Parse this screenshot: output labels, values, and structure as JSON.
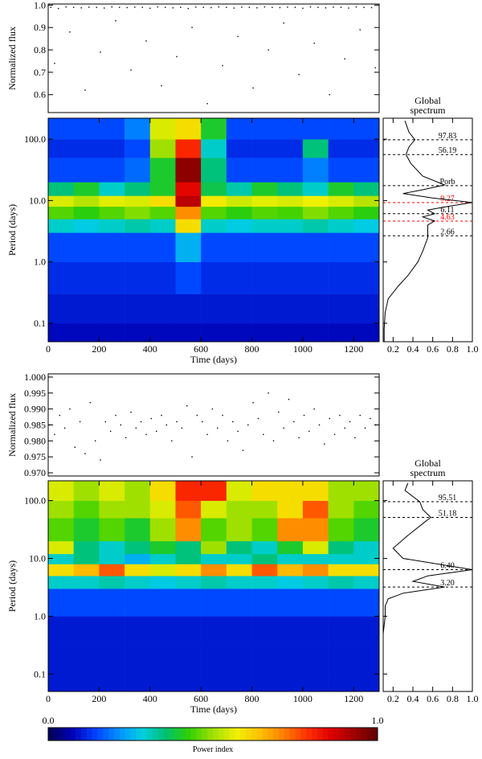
{
  "chart_data": [
    {
      "type": "scatter",
      "ylabel": "Normalized flux",
      "color": "#000000",
      "xlim": [
        0,
        1300
      ],
      "ylim": [
        0.52,
        1.005
      ],
      "yticks": [
        0.6,
        0.7,
        0.8,
        0.9,
        {
          "value": 1.0,
          "label": "1.0"
        }
      ],
      "x": [
        10,
        40,
        70,
        100,
        130,
        160,
        190,
        220,
        250,
        280,
        310,
        340,
        370,
        400,
        430,
        460,
        490,
        520,
        550,
        580,
        610,
        640,
        670,
        700,
        730,
        760,
        790,
        820,
        850,
        880,
        910,
        940,
        970,
        1000,
        1030,
        1060,
        1090,
        1120,
        1150,
        1180,
        1210,
        1240,
        1270,
        25,
        85,
        145,
        205,
        265,
        325,
        385,
        445,
        505,
        565,
        625,
        685,
        745,
        805,
        865,
        925,
        985,
        1045,
        1105,
        1165,
        1225,
        1285
      ],
      "values": [
        0.99,
        0.985,
        0.992,
        0.99,
        0.988,
        0.991,
        0.99,
        0.987,
        0.992,
        0.99,
        0.989,
        0.991,
        0.99,
        0.986,
        0.992,
        0.99,
        0.988,
        0.99,
        0.985,
        0.991,
        0.99,
        0.989,
        0.992,
        0.99,
        0.987,
        0.991,
        0.99,
        0.988,
        0.992,
        0.99,
        0.989,
        0.991,
        0.99,
        0.986,
        0.992,
        0.99,
        0.988,
        0.991,
        0.99,
        0.987,
        0.992,
        0.99,
        0.989,
        0.74,
        0.88,
        0.62,
        0.79,
        0.93,
        0.71,
        0.84,
        0.64,
        0.77,
        0.9,
        0.56,
        0.73,
        0.86,
        0.63,
        0.8,
        0.92,
        0.69,
        0.83,
        0.6,
        0.76,
        0.89,
        0.72
      ]
    },
    {
      "type": "heatmap",
      "xlabel": "Time (days)",
      "ylabel": "Period (days)",
      "log_y": true,
      "xlim": [
        0,
        1300
      ],
      "ylim": [
        0.05,
        220
      ],
      "xticks": [
        0,
        200,
        400,
        600,
        800,
        1000,
        1200
      ],
      "yticks": [
        0.1,
        {
          "value": 1,
          "label": "1.0"
        },
        {
          "value": 10,
          "label": "10.0"
        },
        {
          "value": 100,
          "label": "100.0"
        }
      ],
      "time_bins": [
        0,
        100,
        200,
        300,
        400,
        500,
        600,
        700,
        800,
        900,
        1000,
        1100,
        1200,
        1300
      ],
      "period_bins": [
        0.05,
        0.1,
        0.3,
        1,
        3,
        5,
        8,
        12,
        20,
        50,
        100,
        220
      ],
      "power": [
        [
          0.08,
          0.08,
          0.08,
          0.08,
          0.08,
          0.08,
          0.08,
          0.08,
          0.08,
          0.08,
          0.08,
          0.08,
          0.08
        ],
        [
          0.1,
          0.1,
          0.1,
          0.1,
          0.1,
          0.1,
          0.1,
          0.1,
          0.1,
          0.1,
          0.1,
          0.1,
          0.1
        ],
        [
          0.12,
          0.12,
          0.12,
          0.12,
          0.12,
          0.15,
          0.12,
          0.12,
          0.12,
          0.12,
          0.12,
          0.12,
          0.12
        ],
        [
          0.15,
          0.15,
          0.15,
          0.15,
          0.15,
          0.25,
          0.15,
          0.15,
          0.15,
          0.15,
          0.15,
          0.15,
          0.15
        ],
        [
          0.3,
          0.28,
          0.3,
          0.32,
          0.3,
          0.6,
          0.3,
          0.28,
          0.3,
          0.3,
          0.32,
          0.3,
          0.28
        ],
        [
          0.45,
          0.42,
          0.45,
          0.48,
          0.45,
          0.7,
          0.45,
          0.42,
          0.45,
          0.44,
          0.48,
          0.45,
          0.42
        ],
        [
          0.55,
          0.52,
          0.56,
          0.55,
          0.6,
          0.9,
          0.58,
          0.54,
          0.56,
          0.55,
          0.57,
          0.55,
          0.52
        ],
        [
          0.35,
          0.4,
          0.3,
          0.35,
          0.4,
          0.85,
          0.38,
          0.32,
          0.4,
          0.35,
          0.3,
          0.4,
          0.35
        ],
        [
          0.15,
          0.15,
          0.15,
          0.18,
          0.4,
          0.95,
          0.35,
          0.15,
          0.15,
          0.15,
          0.2,
          0.15,
          0.15
        ],
        [
          0.12,
          0.12,
          0.12,
          0.15,
          0.5,
          0.8,
          0.3,
          0.12,
          0.12,
          0.12,
          0.35,
          0.12,
          0.12
        ],
        [
          0.15,
          0.15,
          0.15,
          0.2,
          0.55,
          0.6,
          0.4,
          0.15,
          0.15,
          0.15,
          0.15,
          0.15,
          0.15
        ]
      ]
    },
    {
      "type": "line",
      "title_lines": [
        "Global",
        "spectrum"
      ],
      "color": "#000000",
      "log_y": true,
      "xlim": [
        0.1,
        1.0
      ],
      "ylim": [
        0.05,
        220
      ],
      "xticks": [
        0.2,
        0.4,
        0.6,
        0.8,
        {
          "value": 1.0,
          "label": "1.0"
        }
      ],
      "y": [
        200,
        130,
        98,
        75,
        56,
        40,
        25,
        18,
        15,
        13,
        11,
        9.27,
        8,
        7,
        6.1,
        5.4,
        4.63,
        4,
        3,
        2.5,
        1.5,
        1,
        0.6,
        0.4,
        0.25,
        0.15,
        0.08,
        0.05
      ],
      "values": [
        0.32,
        0.36,
        0.42,
        0.36,
        0.33,
        0.38,
        0.5,
        0.72,
        0.5,
        0.3,
        0.6,
        1.0,
        0.75,
        0.55,
        0.62,
        0.5,
        0.62,
        0.55,
        0.55,
        0.55,
        0.5,
        0.45,
        0.35,
        0.25,
        0.15,
        0.12,
        0.11,
        0.11
      ],
      "annotations": [
        {
          "value": 97.83,
          "label": "97.83",
          "color": "#000000"
        },
        {
          "value": 56.19,
          "label": "56.19",
          "color": "#000000"
        },
        {
          "value": 17.5,
          "label": "Porb",
          "color": "#000000"
        },
        {
          "value": 9.27,
          "label": "9.27",
          "color": "#ff0000"
        },
        {
          "value": 6.11,
          "label": "6.11",
          "color": "#000000"
        },
        {
          "value": 4.63,
          "label": "4.63",
          "color": "#ff0000"
        },
        {
          "value": 2.66,
          "label": "2.66",
          "color": "#000000"
        }
      ]
    },
    {
      "type": "scatter",
      "ylabel": "Normalized flux",
      "color": "#000000",
      "xlim": [
        0,
        1300
      ],
      "ylim": [
        0.969,
        1.001
      ],
      "yticks": [
        {
          "value": 0.97,
          "label": "0.970"
        },
        {
          "value": 0.975,
          "label": "0.975"
        },
        {
          "value": 0.98,
          "label": "0.980"
        },
        {
          "value": 0.985,
          "label": "0.985"
        },
        {
          "value": 0.99,
          "label": "0.990"
        },
        {
          "value": 0.995,
          "label": "0.995"
        },
        {
          "value": 1.0,
          "label": "1.000"
        }
      ],
      "x": [
        5,
        25,
        45,
        65,
        85,
        105,
        125,
        145,
        165,
        185,
        205,
        225,
        245,
        265,
        285,
        305,
        325,
        345,
        365,
        385,
        405,
        425,
        445,
        465,
        485,
        505,
        525,
        545,
        565,
        585,
        605,
        625,
        645,
        665,
        685,
        705,
        725,
        745,
        765,
        785,
        805,
        825,
        845,
        865,
        885,
        905,
        925,
        945,
        965,
        985,
        1005,
        1025,
        1045,
        1065,
        1085,
        1105,
        1125,
        1145,
        1165,
        1185,
        1205,
        1225,
        1245,
        1265,
        1285
      ],
      "values": [
        0.985,
        0.982,
        0.988,
        0.984,
        0.99,
        0.978,
        0.986,
        0.976,
        0.992,
        0.98,
        0.974,
        0.986,
        0.983,
        0.988,
        0.985,
        0.981,
        0.989,
        0.984,
        0.986,
        0.982,
        0.987,
        0.983,
        0.988,
        0.985,
        0.98,
        0.986,
        0.984,
        0.991,
        0.975,
        0.988,
        0.986,
        0.982,
        0.99,
        0.984,
        0.988,
        0.98,
        0.986,
        0.983,
        0.977,
        0.985,
        0.992,
        0.987,
        0.982,
        0.995,
        0.98,
        0.989,
        0.984,
        0.993,
        0.986,
        0.981,
        0.988,
        0.983,
        0.99,
        0.985,
        0.979,
        0.987,
        0.982,
        0.988,
        0.984,
        0.986,
        0.981,
        0.988,
        0.984,
        0.987,
        0.985
      ]
    },
    {
      "type": "heatmap",
      "xlabel": "Time (days)",
      "ylabel": "Period (days)",
      "log_y": true,
      "xlim": [
        0,
        1300
      ],
      "ylim": [
        0.05,
        220
      ],
      "xticks": [
        0,
        200,
        400,
        600,
        800,
        1000,
        1200
      ],
      "yticks": [
        0.1,
        {
          "value": 1,
          "label": "1.0"
        },
        {
          "value": 10,
          "label": "10.0"
        },
        {
          "value": 100,
          "label": "100.0"
        }
      ],
      "time_bins": [
        0,
        100,
        200,
        300,
        400,
        500,
        600,
        700,
        800,
        900,
        1000,
        1100,
        1200,
        1300
      ],
      "period_bins": [
        0.05,
        0.1,
        0.3,
        1,
        3,
        5,
        8,
        12,
        20,
        50,
        100,
        220
      ],
      "power": [
        [
          0.1,
          0.1,
          0.1,
          0.1,
          0.1,
          0.1,
          0.1,
          0.1,
          0.1,
          0.1,
          0.1,
          0.1,
          0.1
        ],
        [
          0.1,
          0.1,
          0.1,
          0.1,
          0.1,
          0.1,
          0.1,
          0.1,
          0.1,
          0.1,
          0.1,
          0.1,
          0.1
        ],
        [
          0.1,
          0.1,
          0.1,
          0.1,
          0.1,
          0.1,
          0.1,
          0.1,
          0.1,
          0.1,
          0.1,
          0.1,
          0.1
        ],
        [
          0.15,
          0.15,
          0.15,
          0.15,
          0.15,
          0.15,
          0.15,
          0.15,
          0.15,
          0.15,
          0.15,
          0.15,
          0.15
        ],
        [
          0.3,
          0.3,
          0.32,
          0.3,
          0.28,
          0.3,
          0.32,
          0.3,
          0.3,
          0.28,
          0.3,
          0.32,
          0.3
        ],
        [
          0.6,
          0.65,
          0.75,
          0.6,
          0.55,
          0.6,
          0.7,
          0.6,
          0.75,
          0.65,
          0.7,
          0.6,
          0.6
        ],
        [
          0.3,
          0.35,
          0.3,
          0.25,
          0.3,
          0.35,
          0.3,
          0.3,
          0.35,
          0.3,
          0.3,
          0.3,
          0.3
        ],
        [
          0.55,
          0.35,
          0.3,
          0.35,
          0.4,
          0.35,
          0.5,
          0.35,
          0.3,
          0.4,
          0.55,
          0.35,
          0.3
        ],
        [
          0.45,
          0.4,
          0.45,
          0.4,
          0.5,
          0.7,
          0.45,
          0.5,
          0.45,
          0.7,
          0.7,
          0.45,
          0.4
        ],
        [
          0.5,
          0.45,
          0.5,
          0.5,
          0.55,
          0.75,
          0.55,
          0.5,
          0.5,
          0.6,
          0.75,
          0.5,
          0.45
        ],
        [
          0.55,
          0.5,
          0.55,
          0.5,
          0.6,
          0.8,
          0.8,
          0.55,
          0.6,
          0.6,
          0.6,
          0.5,
          0.5
        ]
      ]
    },
    {
      "type": "line",
      "title_lines": [
        "Global",
        "spectrum"
      ],
      "color": "#000000",
      "log_y": true,
      "xlim": [
        0.1,
        1.0
      ],
      "ylim": [
        0.05,
        220
      ],
      "xticks": [
        0.2,
        0.4,
        0.6,
        0.8,
        {
          "value": 1.0,
          "label": "1.0"
        }
      ],
      "y": [
        200,
        150,
        95.51,
        70,
        51.18,
        40,
        25,
        15,
        10,
        8,
        6.4,
        5,
        4,
        3.2,
        2.5,
        2,
        1.5,
        1,
        0.5,
        0.1,
        0.05
      ],
      "values": [
        0.35,
        0.32,
        0.47,
        0.5,
        0.58,
        0.5,
        0.35,
        0.2,
        0.3,
        0.65,
        1.0,
        0.55,
        0.4,
        0.72,
        0.3,
        0.15,
        0.12,
        0.12,
        0.1,
        0.1,
        0.1
      ],
      "annotations": [
        {
          "value": 95.51,
          "label": "95.51",
          "color": "#000000"
        },
        {
          "value": 51.18,
          "label": "51.18",
          "color": "#000000"
        },
        {
          "value": 6.4,
          "label": "6.40",
          "color": "#000000"
        },
        {
          "value": 3.2,
          "label": "3.20",
          "color": "#000000"
        }
      ]
    },
    {
      "type": "colorbar",
      "label": "Power index",
      "ticks": [
        {
          "value": 0,
          "label": "0.0"
        },
        {
          "value": 1,
          "label": "1.0"
        }
      ],
      "colors": [
        "#050050",
        "#0000b4",
        "#0040ff",
        "#0090ff",
        "#00d0e0",
        "#00c070",
        "#30d000",
        "#a0e000",
        "#f0f000",
        "#ffc000",
        "#ff8000",
        "#ff3000",
        "#e00000",
        "#a00000",
        "#600000"
      ]
    }
  ]
}
